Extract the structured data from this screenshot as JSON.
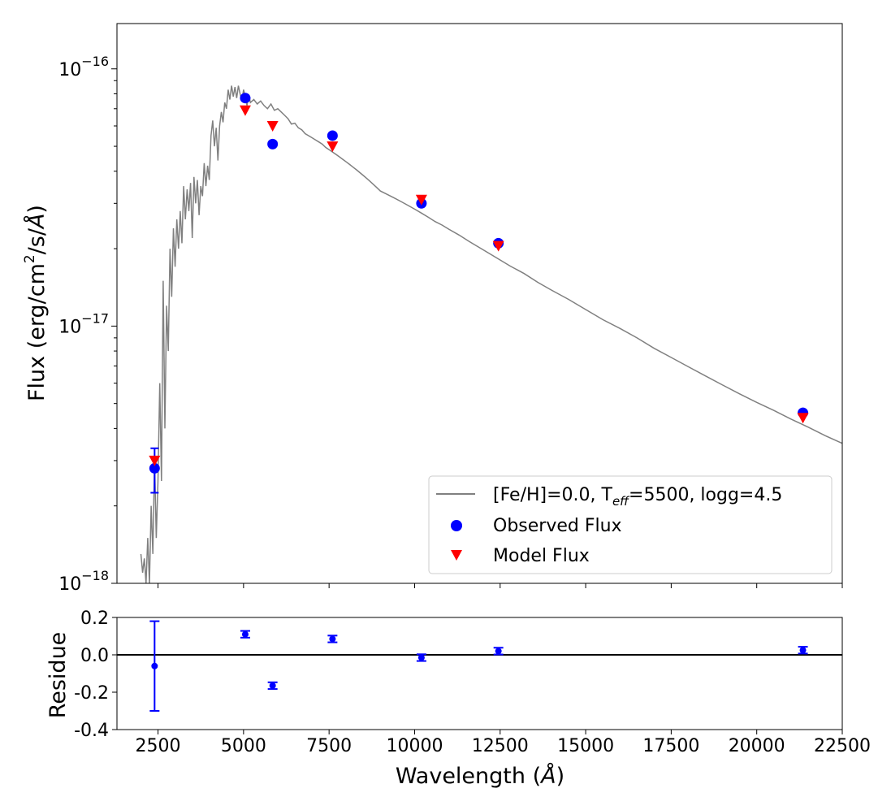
{
  "chart_data": [
    {
      "type": "line",
      "panel": "main",
      "xlabel": "",
      "ylabel_parts": [
        "Flux (erg/cm",
        "2",
        "/s/",
        "Å",
        ")"
      ],
      "xlim": [
        1300,
        22500
      ],
      "ylim": [
        1e-18,
        1.5e-16
      ],
      "yscale": "log",
      "grid": false,
      "legend_position": "lower-right",
      "yticks": [
        {
          "value": 1e-18,
          "base": "10",
          "exp": "−18"
        },
        {
          "value": 1e-17,
          "base": "10",
          "exp": "−17"
        },
        {
          "value": 1e-16,
          "base": "10",
          "exp": "−16"
        }
      ],
      "series": [
        {
          "name": "[Fe/H]=0.0, T_eff=5500, logg=4.5",
          "name_parts": [
            "[Fe/H]=0.0, T",
            "eff",
            "=5500, logg=4.5"
          ],
          "kind": "line",
          "color": "#808080",
          "x": [
            2000,
            2050,
            2100,
            2150,
            2200,
            2250,
            2300,
            2350,
            2400,
            2450,
            2500,
            2550,
            2600,
            2650,
            2700,
            2750,
            2800,
            2850,
            2900,
            2950,
            3000,
            3050,
            3100,
            3150,
            3200,
            3250,
            3300,
            3350,
            3400,
            3450,
            3500,
            3550,
            3600,
            3650,
            3700,
            3750,
            3800,
            3850,
            3900,
            3950,
            4000,
            4050,
            4100,
            4150,
            4200,
            4250,
            4300,
            4350,
            4400,
            4450,
            4500,
            4550,
            4600,
            4650,
            4700,
            4750,
            4800,
            4850,
            4900,
            4950,
            5000,
            5050,
            5100,
            5150,
            5200,
            5300,
            5400,
            5500,
            5600,
            5700,
            5800,
            5900,
            6000,
            6100,
            6200,
            6300,
            6400,
            6500,
            6600,
            6700,
            6800,
            6900,
            7000,
            7100,
            7200,
            7300,
            7400,
            7500,
            7600,
            7700,
            7800,
            7900,
            8000,
            8100,
            8200,
            8300,
            8400,
            8500,
            8600,
            8700,
            8800,
            8900,
            9000,
            9200,
            9400,
            9600,
            9800,
            10000,
            10200,
            10400,
            10600,
            10800,
            11000,
            11300,
            11600,
            12000,
            12400,
            12800,
            13200,
            13600,
            14000,
            14500,
            15000,
            15500,
            16000,
            16500,
            17000,
            17500,
            18000,
            18500,
            19000,
            19500,
            20000,
            20500,
            21000,
            21500,
            22000,
            22500
          ],
          "y": [
            1.3e-18,
            1.1e-18,
            1.25e-18,
            1e-18,
            1.5e-18,
            1e-18,
            2e-18,
            1.3e-18,
            3e-18,
            1.5e-18,
            2.5e-18,
            6e-18,
            2.5e-18,
            1.5e-17,
            4e-18,
            1.2e-17,
            8e-18,
            2e-17,
            1.3e-17,
            2.4e-17,
            1.7e-17,
            2.6e-17,
            2e-17,
            2.8e-17,
            2.1e-17,
            3.5e-17,
            2.6e-17,
            3.4e-17,
            2.8e-17,
            3.6e-17,
            2.2e-17,
            3.8e-17,
            3e-17,
            3.7e-17,
            2.7e-17,
            3.5e-17,
            3.2e-17,
            4.3e-17,
            3.5e-17,
            4.2e-17,
            3.7e-17,
            5.5e-17,
            6.3e-17,
            5e-17,
            5.9e-17,
            4.4e-17,
            6e-17,
            6.8e-17,
            6.2e-17,
            7.4e-17,
            7e-17,
            8.3e-17,
            7.6e-17,
            8.6e-17,
            7.8e-17,
            8.5e-17,
            7.7e-17,
            8.6e-17,
            8e-17,
            7.5e-17,
            8.3e-17,
            7.8e-17,
            7.2e-17,
            7.9e-17,
            7.4e-17,
            7.6e-17,
            7.3e-17,
            7.5e-17,
            7.2e-17,
            7e-17,
            7.3e-17,
            6.9e-17,
            7e-17,
            6.8e-17,
            6.6e-17,
            6.4e-17,
            6.1e-17,
            6.15e-17,
            5.9e-17,
            5.8e-17,
            5.6e-17,
            5.5e-17,
            5.4e-17,
            5.3e-17,
            5.2e-17,
            5.1e-17,
            4.95e-17,
            4.85e-17,
            4.75e-17,
            4.65e-17,
            4.55e-17,
            4.45e-17,
            4.35e-17,
            4.25e-17,
            4.15e-17,
            4.05e-17,
            3.95e-17,
            3.85e-17,
            3.75e-17,
            3.65e-17,
            3.55e-17,
            3.45e-17,
            3.35e-17,
            3.25e-17,
            3.15e-17,
            3.05e-17,
            2.95e-17,
            2.85e-17,
            2.75e-17,
            2.65e-17,
            2.55e-17,
            2.47e-17,
            2.38e-17,
            2.26e-17,
            2.13e-17,
            1.98e-17,
            1.84e-17,
            1.71e-17,
            1.6e-17,
            1.48e-17,
            1.38e-17,
            1.27e-17,
            1.16e-17,
            1.06e-17,
            9.8e-18,
            9e-18,
            8.2e-18,
            7.55e-18,
            6.95e-18,
            6.4e-18,
            5.9e-18,
            5.45e-18,
            5.05e-18,
            4.7e-18,
            4.35e-18,
            4.05e-18,
            3.75e-18,
            3.5e-18
          ]
        },
        {
          "name": "Observed Flux",
          "kind": "scatter",
          "marker": "circle",
          "color": "#0000ff",
          "x": [
            2400,
            5050,
            5850,
            7600,
            10200,
            12450,
            21350
          ],
          "y": [
            2.8e-18,
            7.7e-17,
            5.1e-17,
            5.5e-17,
            3e-17,
            2.1e-17,
            4.6e-18
          ],
          "yerr_low": [
            5.5e-19,
            0,
            0,
            0,
            0,
            0,
            0
          ],
          "yerr_high": [
            5.5e-19,
            0,
            0,
            0,
            0,
            0,
            0
          ]
        },
        {
          "name": "Model Flux",
          "kind": "scatter",
          "marker": "triangle-down",
          "color": "#ff0000",
          "x": [
            2400,
            5050,
            5850,
            7600,
            10200,
            12450,
            21350
          ],
          "y": [
            3e-18,
            6.9e-17,
            6e-17,
            5e-17,
            3.1e-17,
            2.05e-17,
            4.4e-18
          ]
        }
      ]
    },
    {
      "type": "scatter",
      "panel": "residual",
      "xlabel_parts": [
        "Wavelength (",
        "Å",
        ")"
      ],
      "ylabel": "Residue",
      "xlim": [
        1300,
        22500
      ],
      "ylim": [
        -0.4,
        0.2
      ],
      "grid": false,
      "xticks": [
        "2500",
        "5000",
        "7500",
        "10000",
        "12500",
        "15000",
        "17500",
        "20000",
        "22500"
      ],
      "yticks": [
        "0.2",
        "0.0",
        "-0.2",
        "-0.4"
      ],
      "hline": 0.0,
      "series": [
        {
          "kind": "errorbar",
          "color": "#0000ff",
          "x": [
            2400,
            5050,
            5850,
            7600,
            10200,
            12450,
            21350
          ],
          "y": [
            -0.06,
            0.11,
            -0.165,
            0.085,
            -0.015,
            0.02,
            0.025
          ],
          "yerr": [
            0.24,
            0.018,
            0.018,
            0.018,
            0.018,
            0.018,
            0.018
          ]
        }
      ]
    }
  ]
}
